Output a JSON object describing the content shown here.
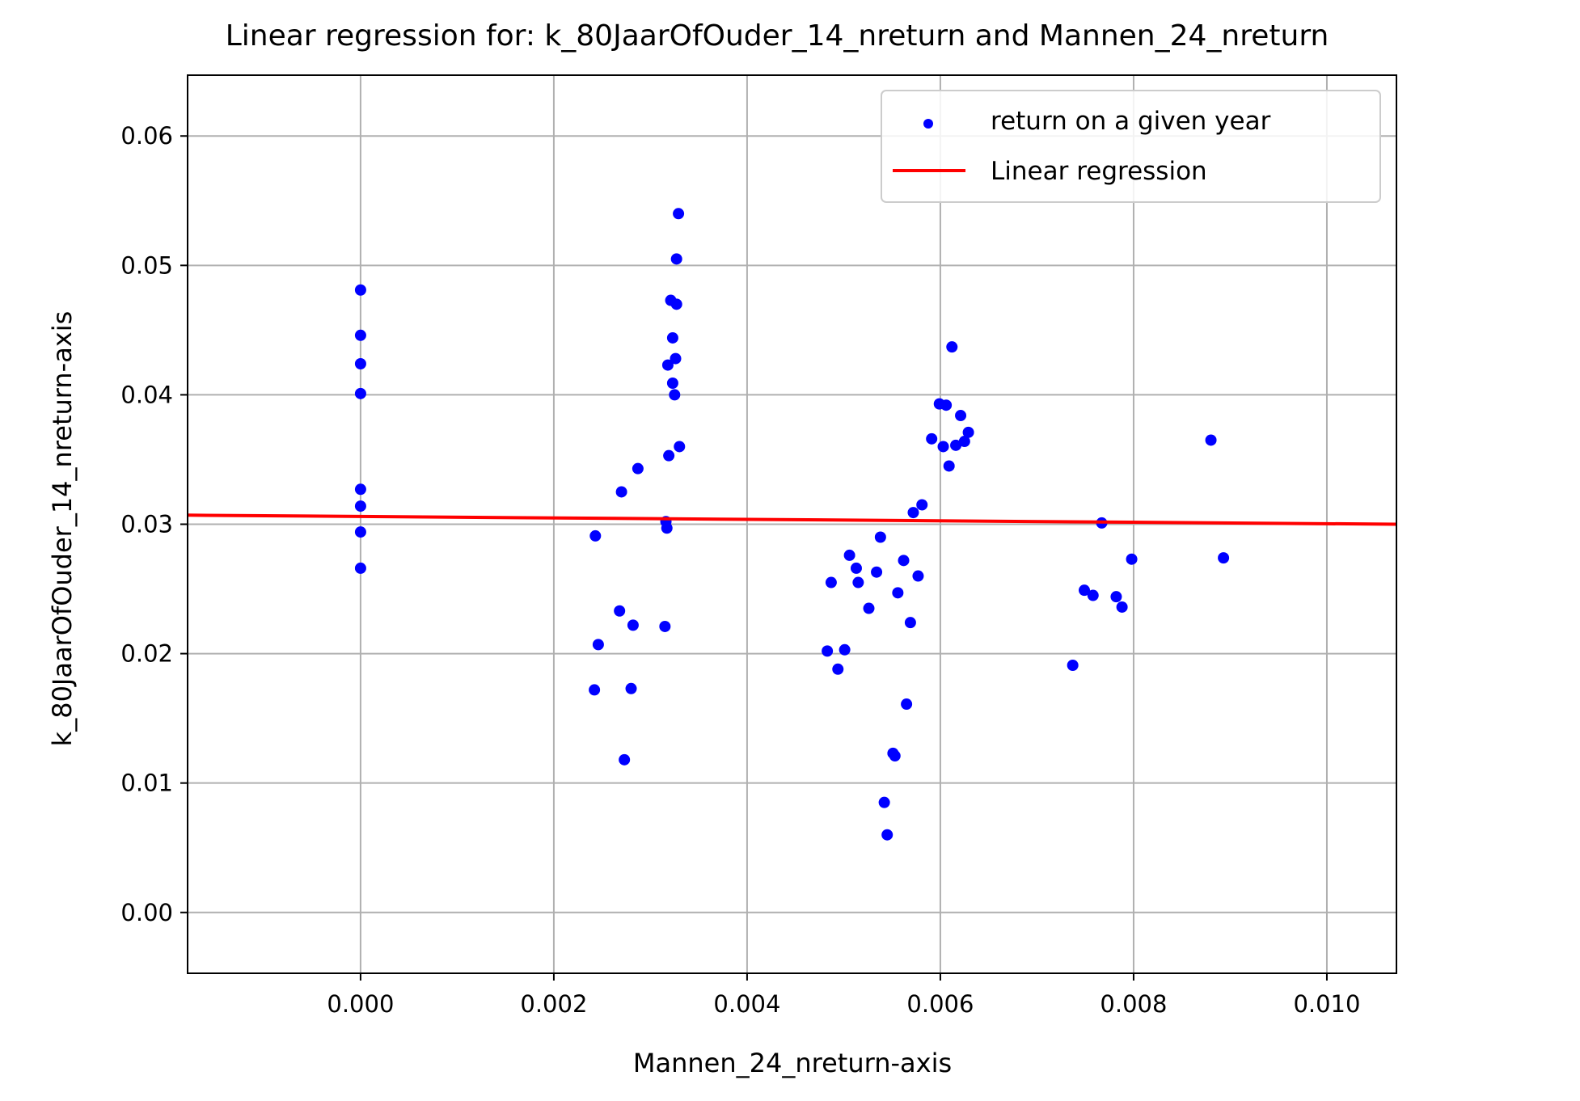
{
  "chart_data": {
    "type": "scatter",
    "title": "Linear regression for: k_80JaarOfOuder_14_nreturn and Mannen_24_nreturn",
    "xlabel": "Mannen_24_nreturn-axis",
    "ylabel": "k_80JaarOfOuder_14_nreturn-axis",
    "xlim": [
      -0.00179,
      0.01072
    ],
    "ylim": [
      -0.0047,
      0.0647
    ],
    "xticks": [
      0.0,
      0.002,
      0.004,
      0.006,
      0.008,
      0.01
    ],
    "xtick_labels": [
      "0.000",
      "0.002",
      "0.004",
      "0.006",
      "0.008",
      "0.010"
    ],
    "yticks": [
      0.0,
      0.01,
      0.02,
      0.03,
      0.04,
      0.05,
      0.06
    ],
    "ytick_labels": [
      "0.00",
      "0.01",
      "0.02",
      "0.03",
      "0.04",
      "0.05",
      "0.06"
    ],
    "grid": true,
    "legend_position": "top-right",
    "colors": {
      "points": "#0000ff",
      "line": "#ff0000"
    },
    "series": [
      {
        "name": "return on a given year",
        "kind": "scatter",
        "points": [
          [
            0.0,
            0.0481
          ],
          [
            0.0,
            0.0446
          ],
          [
            0.0,
            0.0424
          ],
          [
            0.0,
            0.0401
          ],
          [
            0.0,
            0.0327
          ],
          [
            0.0,
            0.0314
          ],
          [
            0.0,
            0.0294
          ],
          [
            0.0,
            0.0266
          ],
          [
            0.00243,
            0.0291
          ],
          [
            0.00246,
            0.0207
          ],
          [
            0.00242,
            0.0172
          ],
          [
            0.0027,
            0.0325
          ],
          [
            0.00268,
            0.0233
          ],
          [
            0.00273,
            0.0118
          ],
          [
            0.0028,
            0.0173
          ],
          [
            0.00282,
            0.0222
          ],
          [
            0.00287,
            0.0343
          ],
          [
            0.00316,
            0.0302
          ],
          [
            0.00317,
            0.0297
          ],
          [
            0.00315,
            0.0221
          ],
          [
            0.00318,
            0.0423
          ],
          [
            0.00319,
            0.0353
          ],
          [
            0.00321,
            0.0473
          ],
          [
            0.00323,
            0.0444
          ],
          [
            0.00323,
            0.0409
          ],
          [
            0.00325,
            0.04
          ],
          [
            0.00326,
            0.0428
          ],
          [
            0.00327,
            0.047
          ],
          [
            0.00327,
            0.0505
          ],
          [
            0.00329,
            0.054
          ],
          [
            0.0033,
            0.036
          ],
          [
            0.00483,
            0.0202
          ],
          [
            0.00487,
            0.0255
          ],
          [
            0.00494,
            0.0188
          ],
          [
            0.00501,
            0.0203
          ],
          [
            0.00506,
            0.0276
          ],
          [
            0.00513,
            0.0266
          ],
          [
            0.00515,
            0.0255
          ],
          [
            0.00526,
            0.0235
          ],
          [
            0.00534,
            0.0263
          ],
          [
            0.00538,
            0.029
          ],
          [
            0.00542,
            0.0085
          ],
          [
            0.00545,
            0.006
          ],
          [
            0.00551,
            0.0123
          ],
          [
            0.00553,
            0.0121
          ],
          [
            0.00556,
            0.0247
          ],
          [
            0.00562,
            0.0272
          ],
          [
            0.00565,
            0.0161
          ],
          [
            0.00569,
            0.0224
          ],
          [
            0.00572,
            0.0309
          ],
          [
            0.00577,
            0.026
          ],
          [
            0.00581,
            0.0315
          ],
          [
            0.00591,
            0.0366
          ],
          [
            0.00599,
            0.0393
          ],
          [
            0.00603,
            0.036
          ],
          [
            0.00606,
            0.0392
          ],
          [
            0.00609,
            0.0345
          ],
          [
            0.00612,
            0.0437
          ],
          [
            0.00616,
            0.0361
          ],
          [
            0.00621,
            0.0384
          ],
          [
            0.00625,
            0.0364
          ],
          [
            0.00629,
            0.0371
          ],
          [
            0.00737,
            0.0191
          ],
          [
            0.00749,
            0.0249
          ],
          [
            0.00758,
            0.0245
          ],
          [
            0.00767,
            0.0301
          ],
          [
            0.00782,
            0.0244
          ],
          [
            0.00788,
            0.0236
          ],
          [
            0.00798,
            0.0273
          ],
          [
            0.0088,
            0.0365
          ],
          [
            0.00893,
            0.0274
          ]
        ]
      },
      {
        "name": "Linear regression",
        "kind": "line",
        "points": [
          [
            -0.00179,
            0.0307
          ],
          [
            0.01072,
            0.03
          ]
        ]
      }
    ]
  }
}
